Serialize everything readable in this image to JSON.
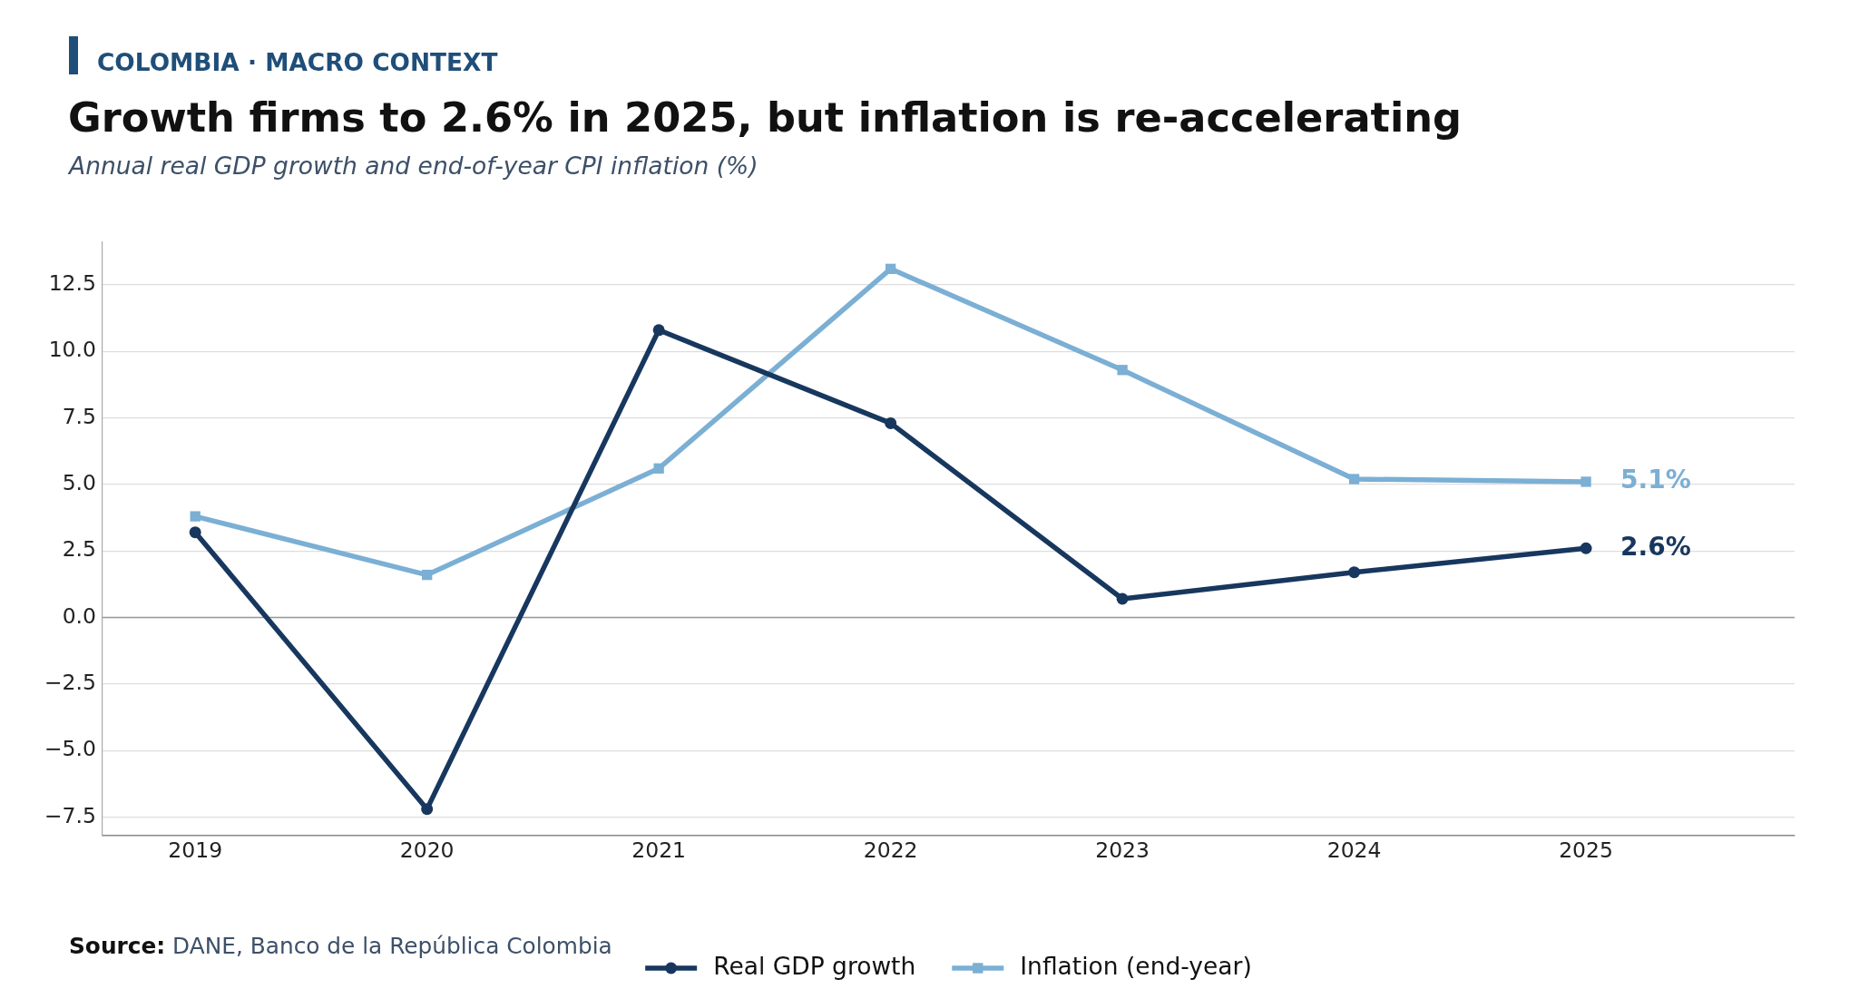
{
  "chart_data": {
    "type": "line",
    "title": "Growth firms to 2.6% in 2025, but inflation is re-accelerating",
    "subtitle": "Annual real GDP growth and end-of-year CPI inflation (%)",
    "annotations": [
      "COLOMBIA · MACRO CONTEXT",
      "Source: DANE, Banco de la República Colombia"
    ],
    "x": [
      2019,
      2020,
      2021,
      2022,
      2023,
      2024,
      2025
    ],
    "series": [
      {
        "name": "Real GDP growth",
        "color": "#17375e",
        "marker": "circle",
        "values": [
          3.2,
          -7.2,
          10.8,
          7.3,
          0.7,
          1.7,
          2.6
        ],
        "value_labels": [
          null,
          null,
          null,
          null,
          null,
          null,
          "2.6%"
        ]
      },
      {
        "name": "Inflation (end-year)",
        "color": "#7bafd4",
        "marker": "square",
        "values": [
          3.8,
          1.6,
          5.6,
          13.1,
          9.3,
          5.2,
          5.1
        ],
        "value_labels": [
          null,
          null,
          null,
          null,
          null,
          null,
          "5.1%"
        ]
      }
    ],
    "xlim": [
      2018.6,
      2025.9
    ],
    "xticks": [
      2019,
      2020,
      2021,
      2022,
      2023,
      2024,
      2025
    ],
    "ylim": [
      -8.2,
      14.1
    ],
    "yticks": [
      {
        "value": -7.5,
        "label": "−7.5"
      },
      {
        "value": -5,
        "label": "−5.0"
      },
      {
        "value": -2.5,
        "label": "−2.5"
      },
      {
        "value": 0,
        "label": "0.0"
      },
      2.5,
      {
        "value": 5,
        "label": "5.0"
      },
      7.5,
      {
        "value": 10,
        "label": "10.0"
      },
      12.5
    ],
    "grid": "y",
    "legend": "bottom",
    "line_style": "solid",
    "ref_lines": [
      {
        "axis": "y",
        "value": 0,
        "color": "#999999"
      }
    ]
  }
}
